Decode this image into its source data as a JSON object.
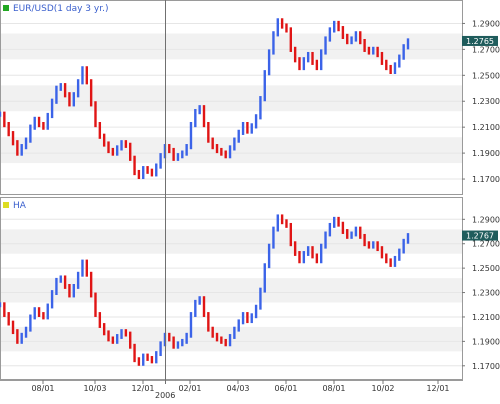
{
  "chart_data": [
    {
      "type": "line",
      "title": "EUR/USD(1 day  3 yr.)",
      "ylim": [
        1.16,
        1.305
      ],
      "yticks": [
        "1.2900",
        "1.2700",
        "1.2500",
        "1.2300",
        "1.2100",
        "1.1900",
        "1.1700"
      ],
      "ytick_values": [
        1.29,
        1.27,
        1.25,
        1.23,
        1.21,
        1.19,
        1.17
      ],
      "last_value": "1.2765",
      "colors": {
        "up": "#3b63e8",
        "down": "#e01515",
        "legend_marker": "#22a822",
        "last_badge": "#1f5c5c"
      },
      "series": [
        {
          "values": [
            1.22,
            1.212,
            1.205,
            1.198,
            1.19,
            1.195,
            1.2,
            1.21,
            1.216,
            1.212,
            1.21,
            1.219,
            1.23,
            1.24,
            1.242,
            1.235,
            1.228,
            1.235,
            1.245,
            1.255,
            1.245,
            1.228,
            1.212,
            1.203,
            1.197,
            1.192,
            1.19,
            1.194,
            1.198,
            1.196,
            1.186,
            1.175,
            1.172,
            1.178,
            1.176,
            1.174,
            1.18,
            1.188,
            1.195,
            1.192,
            1.186,
            1.188,
            1.19,
            1.195,
            1.212,
            1.222,
            1.225,
            1.212,
            1.2,
            1.195,
            1.192,
            1.19,
            1.188,
            1.194,
            1.2,
            1.206,
            1.212,
            1.207,
            1.211,
            1.218,
            1.232,
            1.252,
            1.268,
            1.282,
            1.292,
            1.288,
            1.285,
            1.27,
            1.262,
            1.256,
            1.262,
            1.266,
            1.26,
            1.256,
            1.268,
            1.278,
            1.285,
            1.29,
            1.286,
            1.28,
            1.276,
            1.278,
            1.282,
            1.276,
            1.27,
            1.268,
            1.27,
            1.266,
            1.26,
            1.256,
            1.253,
            1.258,
            1.264,
            1.272,
            1.2765
          ]
        }
      ]
    },
    {
      "type": "line",
      "title": "HA",
      "ylim": [
        1.16,
        1.305
      ],
      "yticks": [
        "1.2900",
        "1.2700",
        "1.2500",
        "1.2300",
        "1.2100",
        "1.1900",
        "1.1700"
      ],
      "ytick_values": [
        1.29,
        1.27,
        1.25,
        1.23,
        1.21,
        1.19,
        1.17
      ],
      "last_value": "1.2767",
      "colors": {
        "up": "#3b63e8",
        "down": "#e01515",
        "legend_marker": "#dddd22",
        "last_badge": "#1f5c5c"
      },
      "series": [
        {
          "values": [
            1.22,
            1.212,
            1.205,
            1.198,
            1.19,
            1.195,
            1.2,
            1.21,
            1.216,
            1.212,
            1.21,
            1.219,
            1.23,
            1.24,
            1.242,
            1.235,
            1.228,
            1.235,
            1.245,
            1.255,
            1.245,
            1.228,
            1.212,
            1.203,
            1.197,
            1.192,
            1.19,
            1.194,
            1.198,
            1.196,
            1.186,
            1.175,
            1.172,
            1.178,
            1.176,
            1.174,
            1.18,
            1.188,
            1.195,
            1.192,
            1.186,
            1.188,
            1.19,
            1.195,
            1.212,
            1.222,
            1.225,
            1.212,
            1.2,
            1.195,
            1.192,
            1.19,
            1.188,
            1.194,
            1.2,
            1.206,
            1.212,
            1.207,
            1.211,
            1.218,
            1.232,
            1.252,
            1.268,
            1.282,
            1.292,
            1.288,
            1.285,
            1.27,
            1.262,
            1.256,
            1.262,
            1.266,
            1.26,
            1.256,
            1.268,
            1.278,
            1.285,
            1.29,
            1.286,
            1.28,
            1.276,
            1.278,
            1.282,
            1.276,
            1.27,
            1.268,
            1.27,
            1.266,
            1.26,
            1.256,
            1.253,
            1.258,
            1.264,
            1.272,
            1.2767
          ]
        }
      ]
    }
  ],
  "x_axis": {
    "ticks": [
      "08/01",
      "10/03",
      "12/01",
      "02/01",
      "04/03",
      "06/01",
      "08/01",
      "10/02",
      "12/01"
    ],
    "year_marker": "2006"
  }
}
